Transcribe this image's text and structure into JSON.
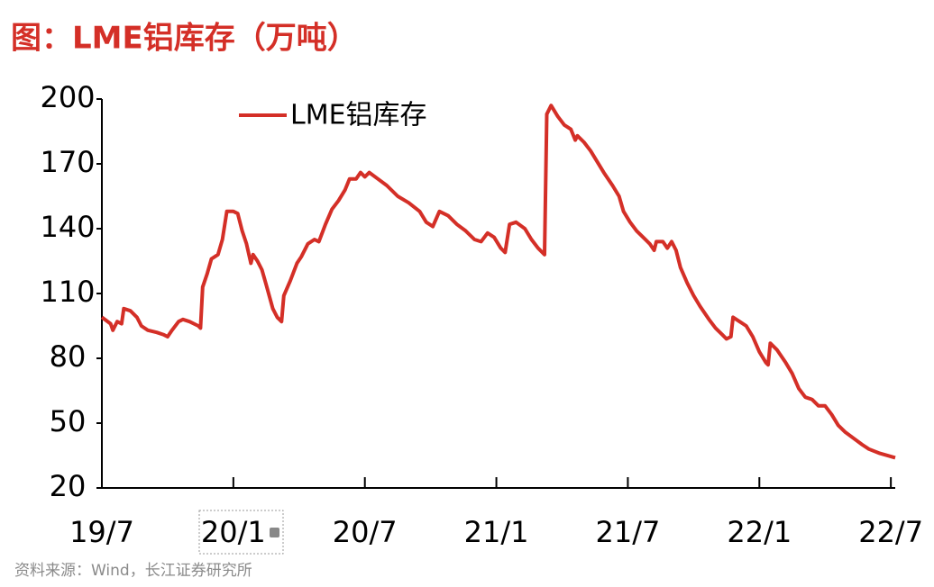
{
  "chart_data": {
    "type": "line",
    "title": "图：LME铝库存（万吨）",
    "source": "资料来源：Wind，长江证券研究所",
    "x": [
      0,
      0.4,
      0.5,
      0.7,
      0.9,
      1.0,
      1.3,
      1.6,
      1.8,
      2.1,
      2.5,
      2.8,
      3.0,
      3.2,
      3.5,
      3.7,
      4.0,
      4.4,
      4.5,
      4.6,
      4.8,
      5.0,
      5.3,
      5.5,
      5.7,
      6.0,
      6.2,
      6.4,
      6.6,
      6.8,
      6.9,
      7.1,
      7.3,
      7.5,
      7.8,
      8.0,
      8.2,
      8.3,
      8.6,
      8.9,
      9.1,
      9.4,
      9.7,
      9.9,
      10.2,
      10.5,
      10.8,
      11.1,
      11.3,
      11.6,
      11.8,
      12.0,
      12.2,
      12.6,
      13.0,
      13.5,
      14.0,
      14.5,
      14.8,
      15.1,
      15.4,
      15.8,
      16.2,
      16.6,
      17.0,
      17.3,
      17.6,
      17.9,
      18.2,
      18.4,
      18.6,
      18.9,
      19.3,
      19.6,
      19.9,
      20.2,
      20.3,
      20.5,
      20.8,
      21.1,
      21.4,
      21.6,
      21.7,
      22.0,
      22.3,
      22.6,
      22.9,
      23.3,
      23.6,
      23.8,
      24.1,
      24.4,
      24.7,
      25.0,
      25.2,
      25.3,
      25.6,
      25.8,
      26.0,
      26.2,
      26.4,
      26.7,
      27.0,
      27.3,
      27.7,
      28.0,
      28.3,
      28.5,
      28.7,
      28.8,
      29.1,
      29.4,
      29.7,
      30.0,
      30.3,
      30.4,
      30.5,
      30.8,
      31.2,
      31.5,
      31.8,
      32.1,
      32.4,
      32.7,
      33.0,
      33.3,
      33.6,
      33.9,
      34.3,
      34.7,
      35.0,
      35.5,
      36.2
    ],
    "series": [
      {
        "name": "LME铝库存",
        "color": "#d42f27",
        "values": [
          99,
          96,
          93,
          97,
          96,
          103,
          102,
          99,
          95,
          93,
          92,
          91,
          90,
          93,
          97,
          98,
          97,
          95,
          94,
          113,
          119,
          126,
          128,
          135,
          148,
          148,
          147,
          139,
          133,
          124,
          128,
          125,
          121,
          114,
          103,
          99,
          97,
          109,
          116,
          124,
          127,
          133,
          135,
          134,
          142,
          149,
          153,
          158,
          163,
          163,
          166,
          164,
          166,
          163,
          160,
          155,
          152,
          148,
          143,
          141,
          148,
          146,
          142,
          139,
          135,
          134,
          138,
          136,
          131,
          129,
          142,
          143,
          140,
          135,
          131,
          128,
          193,
          197,
          192,
          188,
          186,
          181,
          183,
          180,
          176,
          171,
          166,
          160,
          155,
          148,
          143,
          139,
          136,
          133,
          130,
          134,
          134,
          131,
          134,
          130,
          122,
          115,
          109,
          104,
          98,
          94,
          91,
          89,
          90,
          99,
          97,
          95,
          90,
          83,
          78,
          77,
          87,
          84,
          78,
          73,
          66,
          62,
          61,
          58,
          58,
          54,
          49,
          46,
          43,
          40,
          38,
          36,
          34
        ]
      }
    ],
    "xlim": [
      0,
      36.2
    ],
    "xticks": [
      {
        "value": 0,
        "label": "19/7"
      },
      {
        "value": 6,
        "label": "20/1"
      },
      {
        "value": 12,
        "label": "20/7"
      },
      {
        "value": 18,
        "label": "21/1"
      },
      {
        "value": 24,
        "label": "21/7"
      },
      {
        "value": 30,
        "label": "22/1"
      },
      {
        "value": 36,
        "label": "22/7"
      }
    ],
    "ylim": [
      20,
      200
    ],
    "yticks": [
      20,
      50,
      80,
      110,
      140,
      170,
      200
    ],
    "grid": false
  }
}
